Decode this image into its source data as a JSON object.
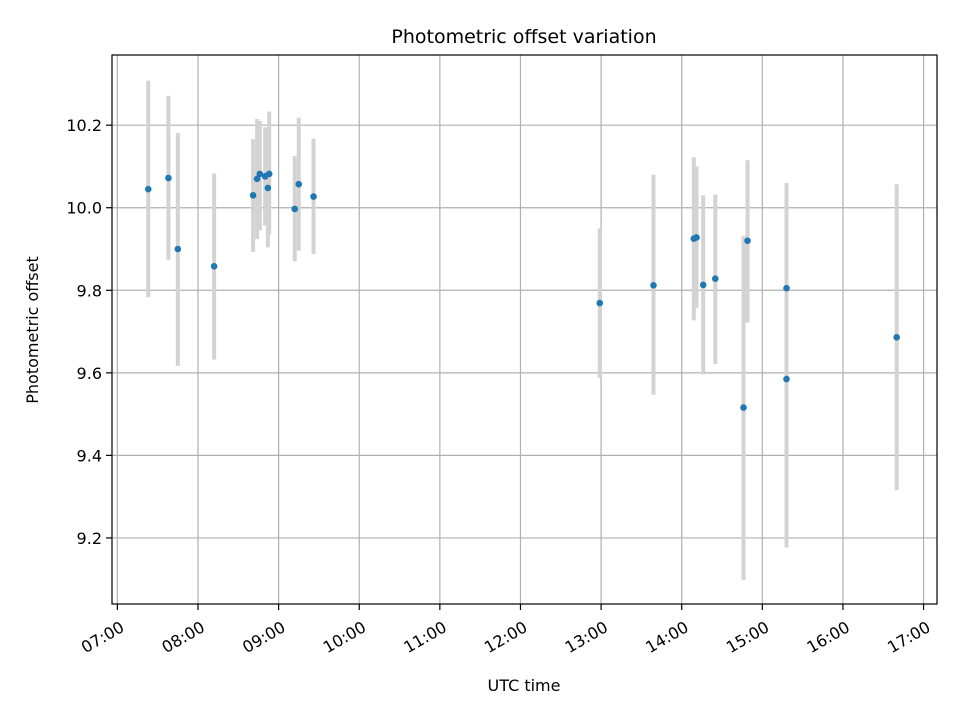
{
  "chart_data": {
    "type": "scatter",
    "title": "Photometric offset variation",
    "xlabel": "UTC time",
    "ylabel": "Photometric offset",
    "x_ticks": [
      "07:00",
      "08:00",
      "09:00",
      "10:00",
      "11:00",
      "12:00",
      "13:00",
      "14:00",
      "15:00",
      "16:00",
      "17:00"
    ],
    "x_tick_hours": [
      7,
      8,
      9,
      10,
      11,
      12,
      13,
      14,
      15,
      16,
      17
    ],
    "y_ticks": [
      "9.2",
      "9.4",
      "9.6",
      "9.8",
      "10.0",
      "10.2"
    ],
    "y_tick_values": [
      9.2,
      9.4,
      9.6,
      9.8,
      10.0,
      10.2
    ],
    "xlim": [
      "06:56",
      "17:10"
    ],
    "ylim": [
      9.04,
      10.37
    ],
    "grid": true,
    "legend": "none",
    "colors": {
      "point": "#1f77b4",
      "errorbar": "#d3d3d3",
      "grid": "#b0b0b0"
    },
    "points": [
      {
        "x": "07:23",
        "y": 10.045,
        "ylow": 9.783,
        "yhigh": 10.308
      },
      {
        "x": "07:38",
        "y": 10.072,
        "ylow": 9.874,
        "yhigh": 10.271
      },
      {
        "x": "07:45",
        "y": 9.9,
        "ylow": 9.617,
        "yhigh": 10.181
      },
      {
        "x": "08:12",
        "y": 9.858,
        "ylow": 9.632,
        "yhigh": 10.083
      },
      {
        "x": "08:41",
        "y": 10.03,
        "ylow": 9.893,
        "yhigh": 10.166
      },
      {
        "x": "08:44",
        "y": 10.07,
        "ylow": 9.924,
        "yhigh": 10.215
      },
      {
        "x": "08:46",
        "y": 10.082,
        "ylow": 9.945,
        "yhigh": 10.21
      },
      {
        "x": "08:50",
        "y": 10.076,
        "ylow": 9.957,
        "yhigh": 10.195
      },
      {
        "x": "08:52",
        "y": 10.048,
        "ylow": 9.904,
        "yhigh": 10.193
      },
      {
        "x": "08:53",
        "y": 10.082,
        "ylow": 9.935,
        "yhigh": 10.233
      },
      {
        "x": "09:12",
        "y": 9.997,
        "ylow": 9.87,
        "yhigh": 10.125
      },
      {
        "x": "09:15",
        "y": 10.057,
        "ylow": 9.896,
        "yhigh": 10.218
      },
      {
        "x": "09:26",
        "y": 10.027,
        "ylow": 9.888,
        "yhigh": 10.167
      },
      {
        "x": "12:59",
        "y": 9.769,
        "ylow": 9.588,
        "yhigh": 9.95
      },
      {
        "x": "13:39",
        "y": 9.812,
        "ylow": 9.547,
        "yhigh": 10.08
      },
      {
        "x": "14:09",
        "y": 9.925,
        "ylow": 9.727,
        "yhigh": 10.122
      },
      {
        "x": "14:11",
        "y": 9.928,
        "ylow": 9.757,
        "yhigh": 10.1
      },
      {
        "x": "14:16",
        "y": 9.813,
        "ylow": 9.596,
        "yhigh": 10.03
      },
      {
        "x": "14:25",
        "y": 9.828,
        "ylow": 9.621,
        "yhigh": 10.032
      },
      {
        "x": "14:46",
        "y": 9.516,
        "ylow": 9.098,
        "yhigh": 9.932
      },
      {
        "x": "14:49",
        "y": 9.92,
        "ylow": 9.722,
        "yhigh": 10.115
      },
      {
        "x": "15:18",
        "y": 9.805,
        "ylow": 9.553,
        "yhigh": 10.06
      },
      {
        "x": "15:18",
        "y": 9.585,
        "ylow": 9.177,
        "yhigh": 9.995
      },
      {
        "x": "16:40",
        "y": 9.686,
        "ylow": 9.316,
        "yhigh": 10.057
      }
    ]
  }
}
